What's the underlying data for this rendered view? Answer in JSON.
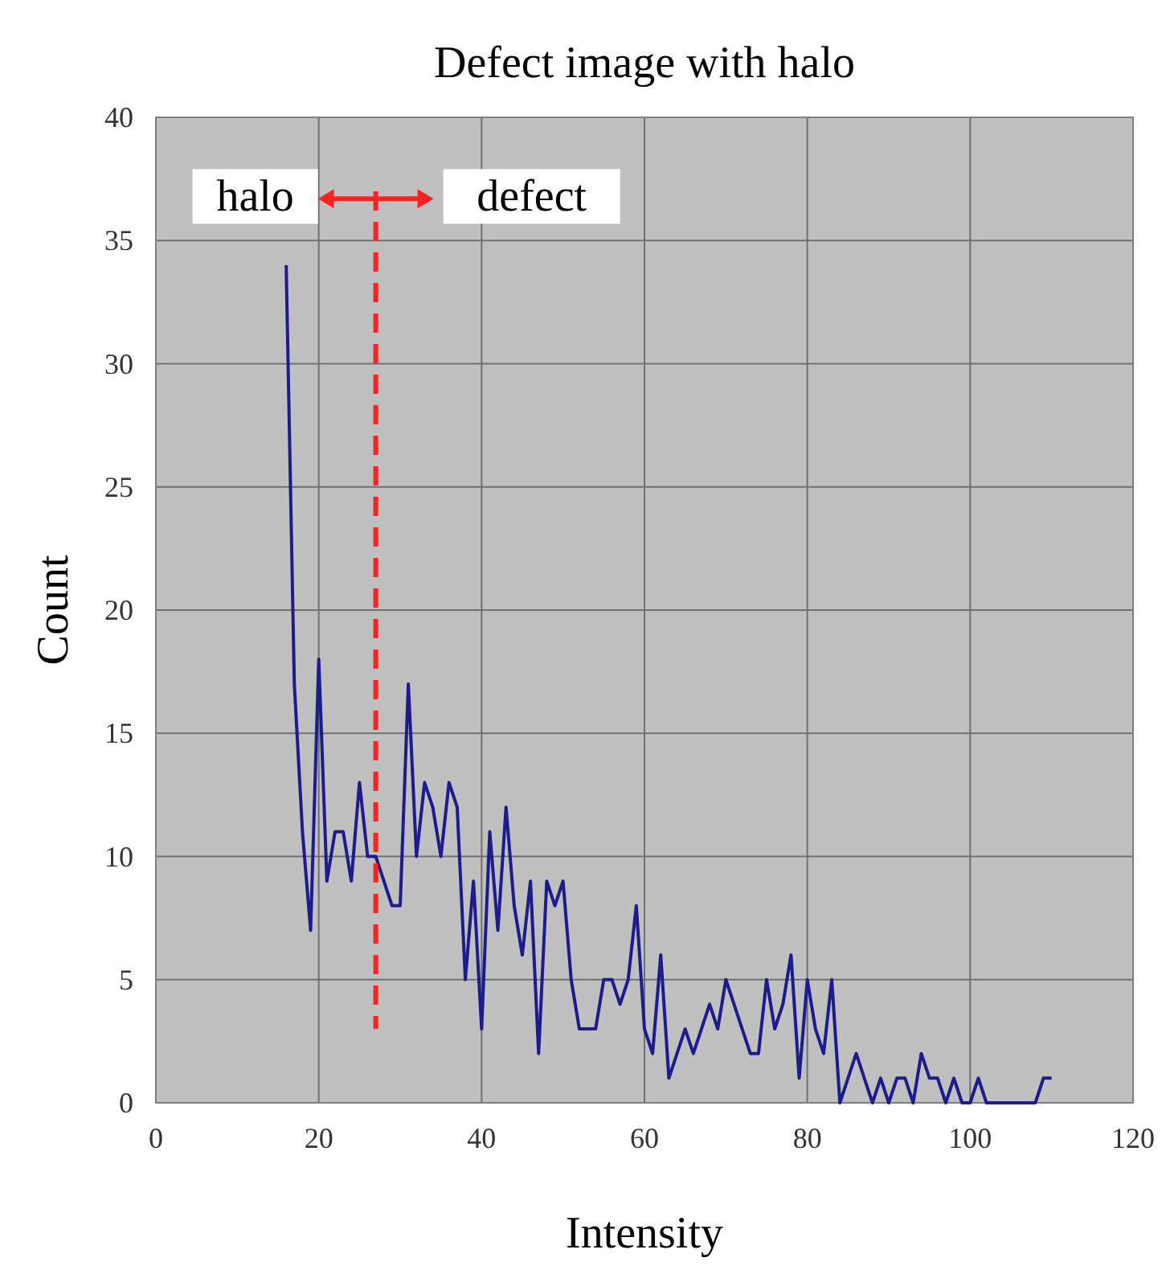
{
  "chart_data": {
    "type": "line",
    "title": "Defect image with halo",
    "xlabel": "Intensity",
    "ylabel": "Count",
    "series": [
      {
        "color": "#1c1c8c",
        "x": [
          16,
          17,
          18,
          19,
          20,
          21,
          22,
          23,
          24,
          25,
          26,
          27,
          28,
          29,
          30,
          31,
          32,
          33,
          34,
          35,
          36,
          37,
          38,
          39,
          40,
          41,
          42,
          43,
          44,
          45,
          46,
          47,
          48,
          49,
          50,
          51,
          52,
          53,
          54,
          55,
          56,
          57,
          58,
          59,
          60,
          61,
          62,
          63,
          64,
          65,
          66,
          67,
          68,
          69,
          70,
          71,
          72,
          73,
          74,
          75,
          76,
          77,
          78,
          79,
          80,
          81,
          82,
          83,
          84,
          85,
          86,
          87,
          88,
          89,
          90,
          91,
          92,
          93,
          94,
          95,
          96,
          97,
          98,
          99,
          100,
          101,
          102,
          103,
          104,
          105,
          106,
          107,
          108,
          109,
          110
        ],
        "values": [
          34,
          17,
          11,
          7,
          18,
          9,
          11,
          11,
          9,
          13,
          10,
          10,
          9,
          8,
          8,
          17,
          10,
          13,
          12,
          10,
          13,
          12,
          5,
          9,
          3,
          11,
          7,
          12,
          8,
          6,
          9,
          2,
          9,
          8,
          9,
          5,
          3,
          3,
          3,
          5,
          5,
          4,
          5,
          8,
          3,
          2,
          6,
          1,
          2,
          3,
          2,
          3,
          4,
          3,
          5,
          4,
          3,
          2,
          2,
          5,
          3,
          4,
          6,
          1,
          5,
          3,
          2,
          5,
          0,
          1,
          2,
          1,
          0,
          1,
          0,
          1,
          1,
          0,
          2,
          1,
          1,
          0,
          1,
          0,
          0,
          1,
          0,
          0,
          0,
          0,
          0,
          0,
          0,
          1,
          1
        ]
      }
    ],
    "xlim": [
      0,
      120
    ],
    "xticks": [
      0,
      20,
      40,
      60,
      80,
      100,
      120
    ],
    "ylim": [
      0,
      40
    ],
    "yticks": [
      0,
      5,
      10,
      15,
      20,
      25,
      30,
      35,
      40
    ],
    "grid": true,
    "marker": "none",
    "line_style": "solid",
    "ref_lines": [
      {
        "axis": "x",
        "value": 27,
        "color": "#ff2020",
        "line_style": "dashed"
      }
    ],
    "annotations": [
      "halo",
      "defect"
    ]
  }
}
